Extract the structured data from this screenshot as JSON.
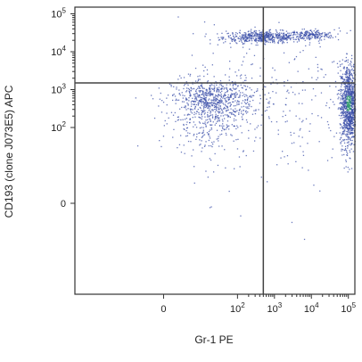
{
  "chart_data": {
    "type": "scatter",
    "title": "",
    "xlabel": "Gr-1 PE",
    "ylabel": "CD193 (clone J073E5) APC",
    "x_scale": "biexponential",
    "y_scale": "biexponential",
    "xlim": [
      -200,
      150000
    ],
    "ylim": [
      -200,
      150000
    ],
    "x_ticks": [
      {
        "value": 0,
        "label": "0"
      },
      {
        "value": 100,
        "label": "10",
        "sup": "2"
      },
      {
        "value": 1000,
        "label": "10",
        "sup": "3"
      },
      {
        "value": 10000,
        "label": "10",
        "sup": "4"
      },
      {
        "value": 100000,
        "label": "10",
        "sup": "5"
      }
    ],
    "y_ticks": [
      {
        "value": 0,
        "label": "0"
      },
      {
        "value": 100,
        "label": "10",
        "sup": "2"
      },
      {
        "value": 1000,
        "label": "10",
        "sup": "3"
      },
      {
        "value": 10000,
        "label": "10",
        "sup": "4"
      },
      {
        "value": 100000,
        "label": "10",
        "sup": "5"
      }
    ],
    "gates": {
      "x": 500,
      "y": 1500
    },
    "point_color": "#3b4fa8",
    "dense_color": "#2f9a6e",
    "gate_color": "#444444",
    "populations": [
      {
        "cx": 2.7,
        "cy": 4.4,
        "sx": 0.55,
        "sy": 0.08,
        "n": 520
      },
      {
        "cx": 4.0,
        "cy": 4.45,
        "sx": 0.3,
        "sy": 0.07,
        "n": 180
      },
      {
        "cx": 1.3,
        "cy": 2.75,
        "sx": 0.55,
        "sy": 0.28,
        "n": 620
      },
      {
        "cx": 1.2,
        "cy": 2.2,
        "sx": 0.5,
        "sy": 0.45,
        "n": 260
      },
      {
        "cx": 5.0,
        "cy": 2.6,
        "sx": 0.12,
        "sy": 0.55,
        "n": 1100
      },
      {
        "cx": 3.0,
        "cy": 2.5,
        "sx": 1.3,
        "sy": 1.1,
        "n": 280
      }
    ]
  }
}
